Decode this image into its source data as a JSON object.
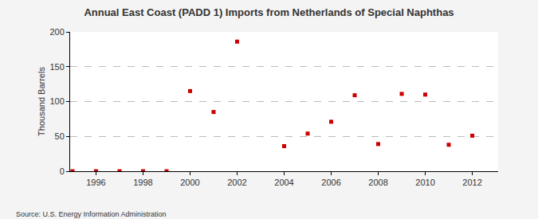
{
  "chart_data": {
    "type": "scatter",
    "title": "Annual East Coast (PADD 1) Imports from Netherlands of Special Naphthas",
    "y_label": "Thousand Barrels",
    "annotations": [
      "Source: U.S. Energy Information Administration"
    ],
    "x": [
      1995,
      1996,
      1997,
      1998,
      1999,
      2000,
      2001,
      2002,
      2004,
      2005,
      2006,
      2007,
      2008,
      2009,
      2010,
      2011,
      2012
    ],
    "values": [
      0,
      0,
      0,
      0,
      0,
      115,
      85,
      186,
      36,
      54,
      71,
      109,
      39,
      111,
      110,
      38,
      51
    ],
    "color": "#cc0000",
    "marker": "square",
    "xlim": [
      1994.9,
      2013.1
    ],
    "xticks": [
      1996,
      1998,
      2000,
      2002,
      2004,
      2006,
      2008,
      2010,
      2012
    ],
    "ylim": [
      0,
      200
    ],
    "yticks": [
      0,
      50,
      100,
      150,
      200
    ],
    "grid": true
  }
}
